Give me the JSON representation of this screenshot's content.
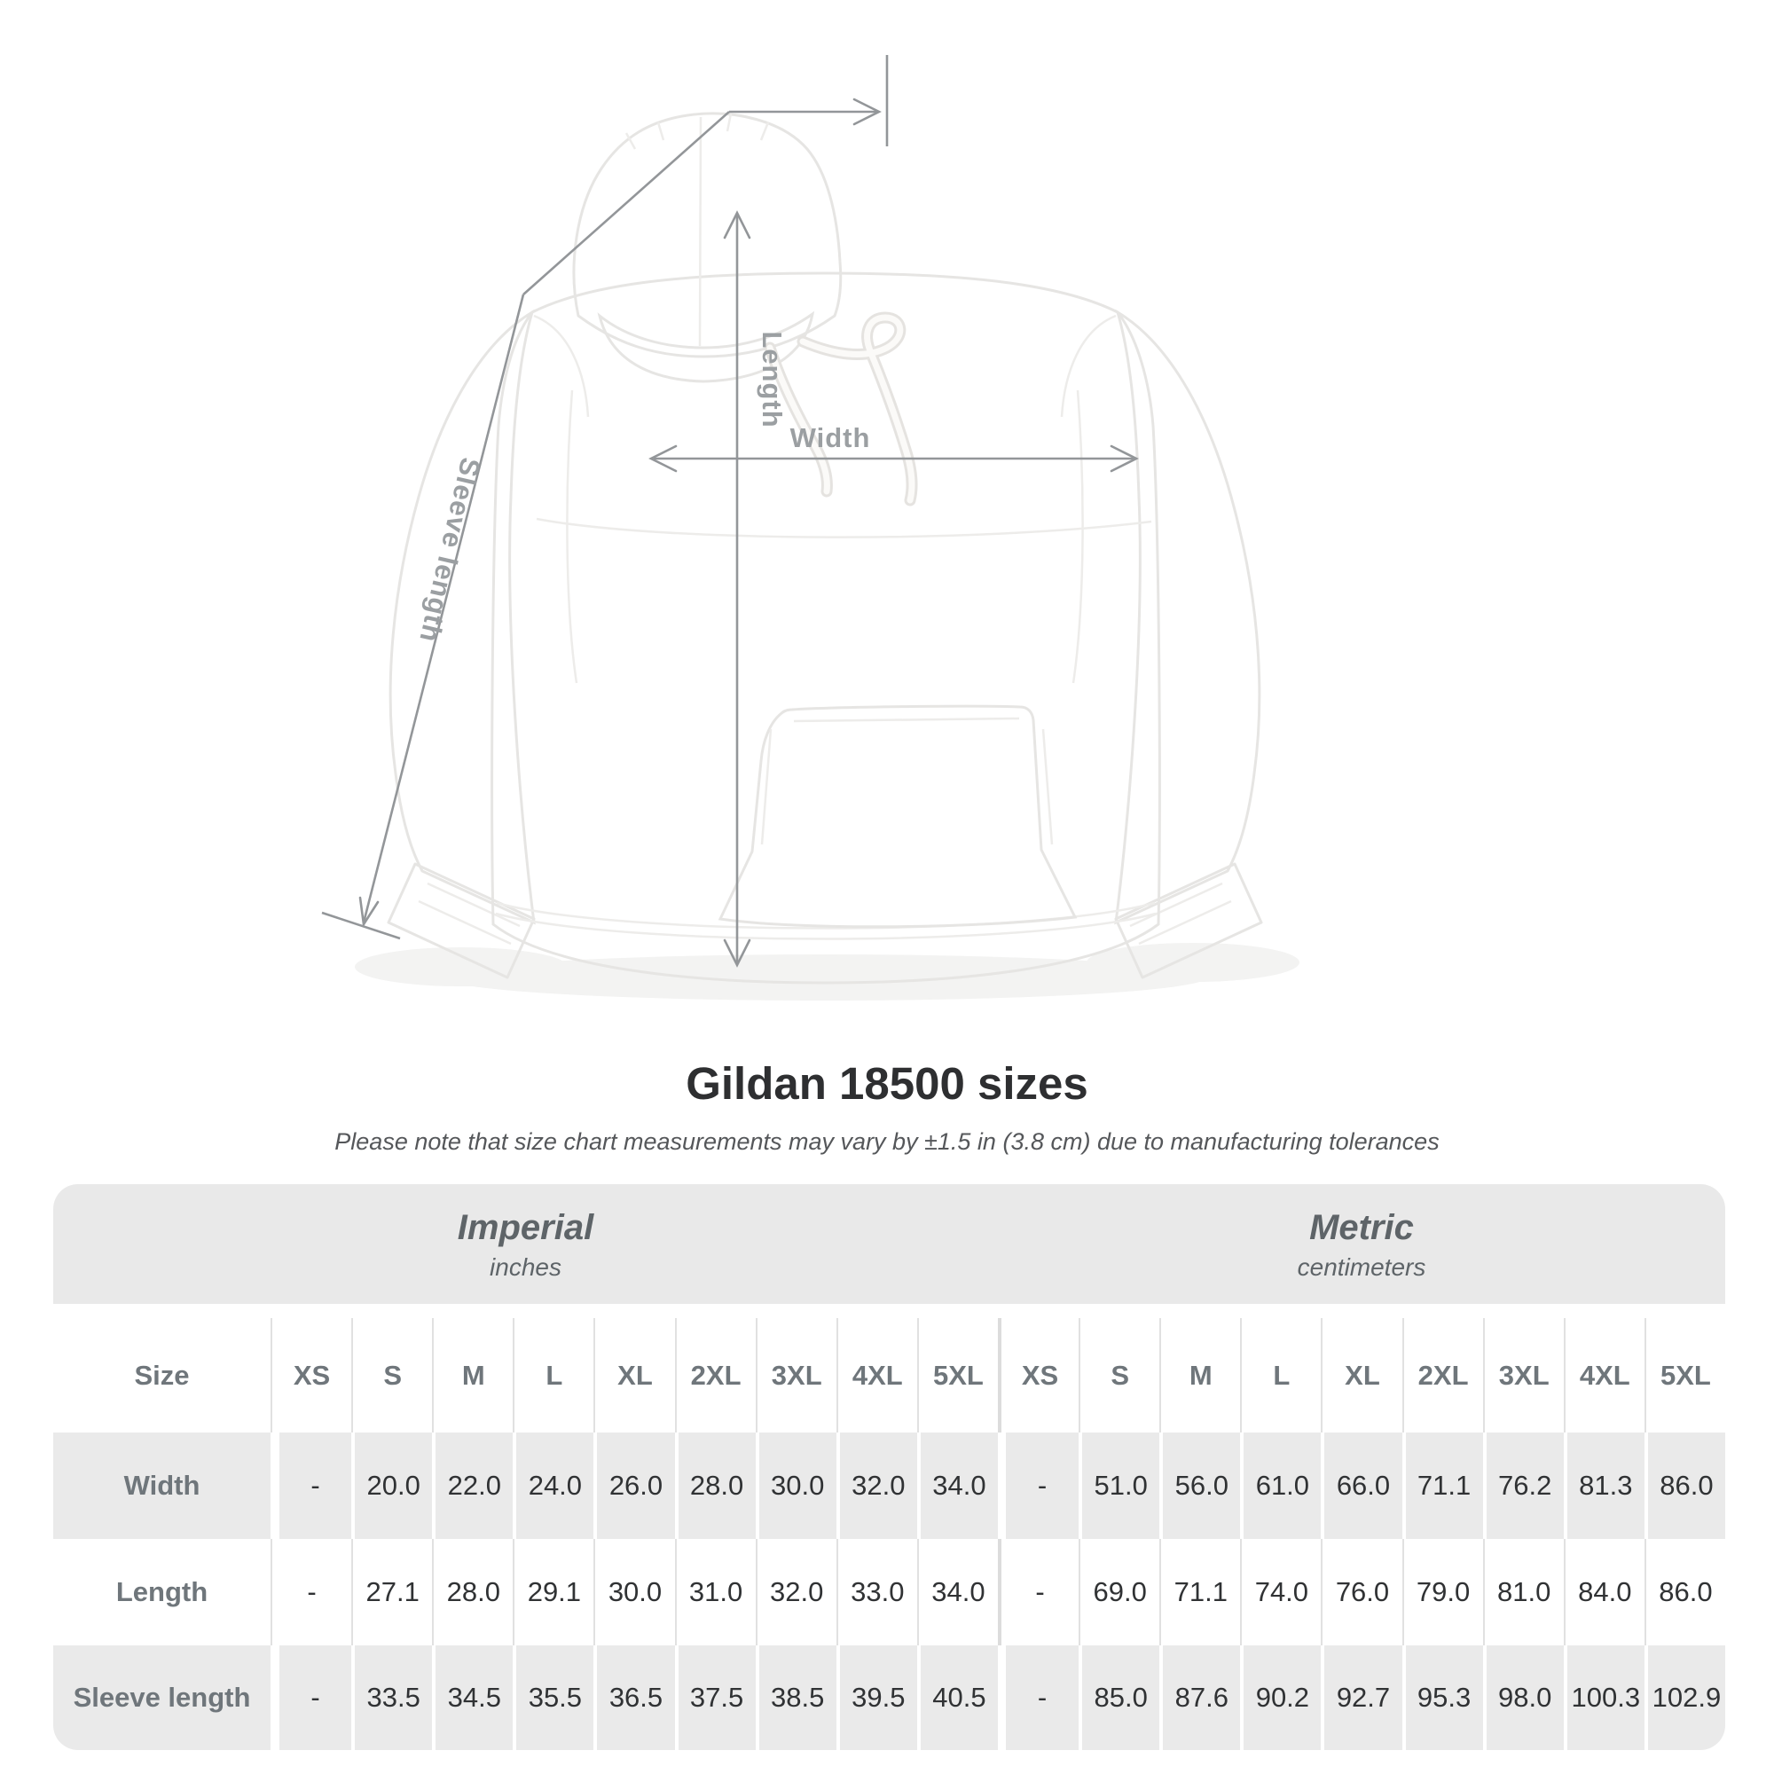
{
  "title": "Gildan 18500 sizes",
  "subtitle": "Please note that size chart measurements may vary by ±1.5 in (3.8 cm) due to manufacturing tolerances",
  "diagram": {
    "length_label": "Length",
    "width_label": "Width",
    "sleeve_label": "Sleeve length"
  },
  "size_table": {
    "size_col_header": "Size",
    "unit_groups": [
      {
        "label": "Imperial",
        "sublabel": "inches"
      },
      {
        "label": "Metric",
        "sublabel": "centimeters"
      }
    ],
    "size_headers": [
      "XS",
      "S",
      "M",
      "L",
      "XL",
      "2XL",
      "3XL",
      "4XL",
      "5XL"
    ],
    "rows": [
      {
        "label": "Width",
        "imperial": [
          "-",
          "20.0",
          "22.0",
          "24.0",
          "26.0",
          "28.0",
          "30.0",
          "32.0",
          "34.0"
        ],
        "metric": [
          "-",
          "51.0",
          "56.0",
          "61.0",
          "66.0",
          "71.1",
          "76.2",
          "81.3",
          "86.0"
        ]
      },
      {
        "label": "Length",
        "imperial": [
          "-",
          "27.1",
          "28.0",
          "29.1",
          "30.0",
          "31.0",
          "32.0",
          "33.0",
          "34.0"
        ],
        "metric": [
          "-",
          "69.0",
          "71.1",
          "74.0",
          "76.0",
          "79.0",
          "81.0",
          "84.0",
          "86.0"
        ]
      },
      {
        "label": "Sleeve length",
        "imperial": [
          "-",
          "33.5",
          "34.5",
          "35.5",
          "36.5",
          "37.5",
          "38.5",
          "39.5",
          "40.5"
        ],
        "metric": [
          "-",
          "85.0",
          "87.6",
          "90.2",
          "92.7",
          "95.3",
          "98.0",
          "100.3",
          "102.9"
        ]
      }
    ]
  },
  "colors": {
    "stripe": "#eaeaea",
    "header_band": "#e9e9e9",
    "label_text": "#6f767b",
    "data_text": "#303234",
    "annotation": "#939699",
    "title_text": "#2e2f31"
  }
}
